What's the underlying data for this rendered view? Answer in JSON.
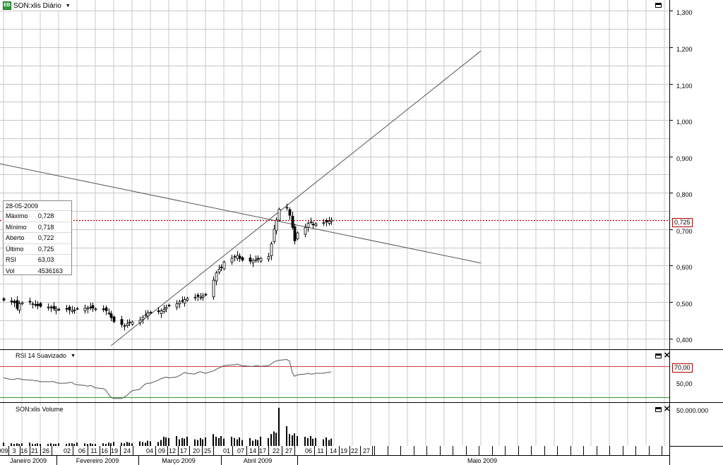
{
  "header": {
    "symbol_label": "SON:xlis Diário",
    "logo_text": "EB"
  },
  "price_axis": {
    "ticks": [
      "1,300",
      "1,200",
      "1,100",
      "1,000",
      "0,900",
      "0,800",
      "0,700",
      "0,600",
      "0,500",
      "0,400"
    ],
    "current_price_tag": "0,725"
  },
  "info_box": {
    "date": "28-05-2009",
    "rows": [
      {
        "label": "Máximo",
        "value": "0,728"
      },
      {
        "label": "Mínimo",
        "value": "0,718"
      },
      {
        "label": "Aberto",
        "value": "0,722"
      },
      {
        "label": "Último",
        "value": "0,725"
      },
      {
        "label": "RSI",
        "value": "63,03"
      },
      {
        "label": "Vol",
        "value": "4536163"
      }
    ]
  },
  "rsi_panel": {
    "title": "RSI 14 Suavizado",
    "ticks": [
      "70,00",
      "50,00"
    ]
  },
  "volume_panel": {
    "title": "SON:xlis Volume",
    "ticks": [
      "50.000.000"
    ]
  },
  "date_axis": {
    "days": [
      "009",
      "3",
      "16",
      "21",
      "26",
      "02",
      "06",
      "11",
      "16",
      "19",
      "24",
      "04",
      "09",
      "12",
      "17",
      "20",
      "25",
      "01",
      "07",
      "14",
      "17",
      "22",
      "27",
      "06",
      "11",
      "14",
      "19",
      "22",
      "27"
    ],
    "months": [
      "Janeiro 2009",
      "Fevereiro 2009",
      "Março 2009",
      "Abril 2009",
      "Maio 2009"
    ]
  },
  "colors": {
    "accent_red": "#cc0000",
    "grid": "#c8c8c8",
    "line": "#555555"
  },
  "chart_data": {
    "type": "candlestick",
    "x_start": "2009-01-02",
    "ylim": [
      0.37,
      1.33
    ],
    "closes": [
      0.505,
      0.5,
      0.498,
      0.482,
      0.495,
      0.498,
      0.5,
      0.495,
      0.492,
      0.49,
      0.488,
      0.486,
      0.484,
      0.482,
      0.481,
      0.48,
      0.48,
      0.478,
      0.477,
      0.478,
      0.482,
      0.483,
      0.484,
      0.484,
      0.483,
      0.481,
      0.48,
      0.476,
      0.47,
      0.457,
      0.446,
      0.438,
      0.435,
      0.44,
      0.445,
      0.445,
      0.45,
      0.458,
      0.465,
      0.47,
      0.472,
      0.474,
      0.476,
      0.48,
      0.485,
      0.49,
      0.495,
      0.5,
      0.503,
      0.507,
      0.51,
      0.513,
      0.515,
      0.513,
      0.517,
      0.52,
      0.56,
      0.58,
      0.59,
      0.595,
      0.61,
      0.62,
      0.625,
      0.628,
      0.62,
      0.615,
      0.612,
      0.614,
      0.616,
      0.618,
      0.62,
      0.625,
      0.66,
      0.7,
      0.725,
      0.755,
      0.76,
      0.738,
      0.705,
      0.668,
      0.69,
      0.705,
      0.716,
      0.72,
      0.712,
      0.715,
      0.718,
      0.72,
      0.722,
      0.725
    ],
    "rsi": [
      55,
      53,
      53,
      54,
      54,
      53,
      52,
      52,
      51,
      51,
      50,
      50,
      50,
      50,
      49,
      48,
      48,
      49,
      49,
      47,
      46,
      45,
      44,
      45,
      44,
      42,
      41,
      39,
      33,
      30,
      28,
      28,
      30,
      32,
      35,
      38,
      40,
      44,
      47,
      48,
      48,
      52,
      54,
      55,
      56,
      55,
      56,
      58,
      60,
      62,
      61,
      60,
      62,
      63,
      62,
      61,
      64,
      66,
      68,
      69,
      71,
      72,
      72,
      73,
      72,
      71,
      70,
      70,
      71,
      71,
      70,
      71,
      73,
      76,
      77,
      78,
      79,
      77,
      62,
      57,
      59,
      60,
      61,
      60,
      60,
      61,
      61,
      62,
      62,
      63
    ],
    "volume_millions": [
      5,
      4,
      3,
      4,
      3,
      4,
      5,
      3,
      3,
      4,
      3,
      3,
      4,
      3,
      3,
      4,
      3,
      4,
      4,
      3,
      5,
      4,
      3,
      4,
      3,
      3,
      4,
      3,
      5,
      4,
      6,
      5,
      4,
      6,
      5,
      4,
      7,
      6,
      5,
      8,
      7,
      6,
      9,
      14,
      13,
      12,
      15,
      10,
      12,
      11,
      14,
      10,
      9,
      12,
      10,
      13,
      18,
      14,
      12,
      15,
      11,
      14,
      12,
      10,
      13,
      9,
      12,
      8,
      10,
      9,
      14,
      12,
      18,
      22,
      20,
      58,
      30,
      18,
      16,
      19,
      15,
      14,
      12,
      15,
      11,
      12,
      10,
      13,
      9,
      11
    ],
    "trendlines": [
      {
        "from": [
          "2008-12-08",
          0.915
        ],
        "to": [
          "2009-07-03",
          0.607
        ]
      },
      {
        "from": [
          "2009-02-12",
          0.38
        ],
        "to": [
          "2009-07-03",
          1.19
        ]
      }
    ],
    "current_price": 0.725,
    "rsi_levels": [
      70,
      30
    ]
  }
}
